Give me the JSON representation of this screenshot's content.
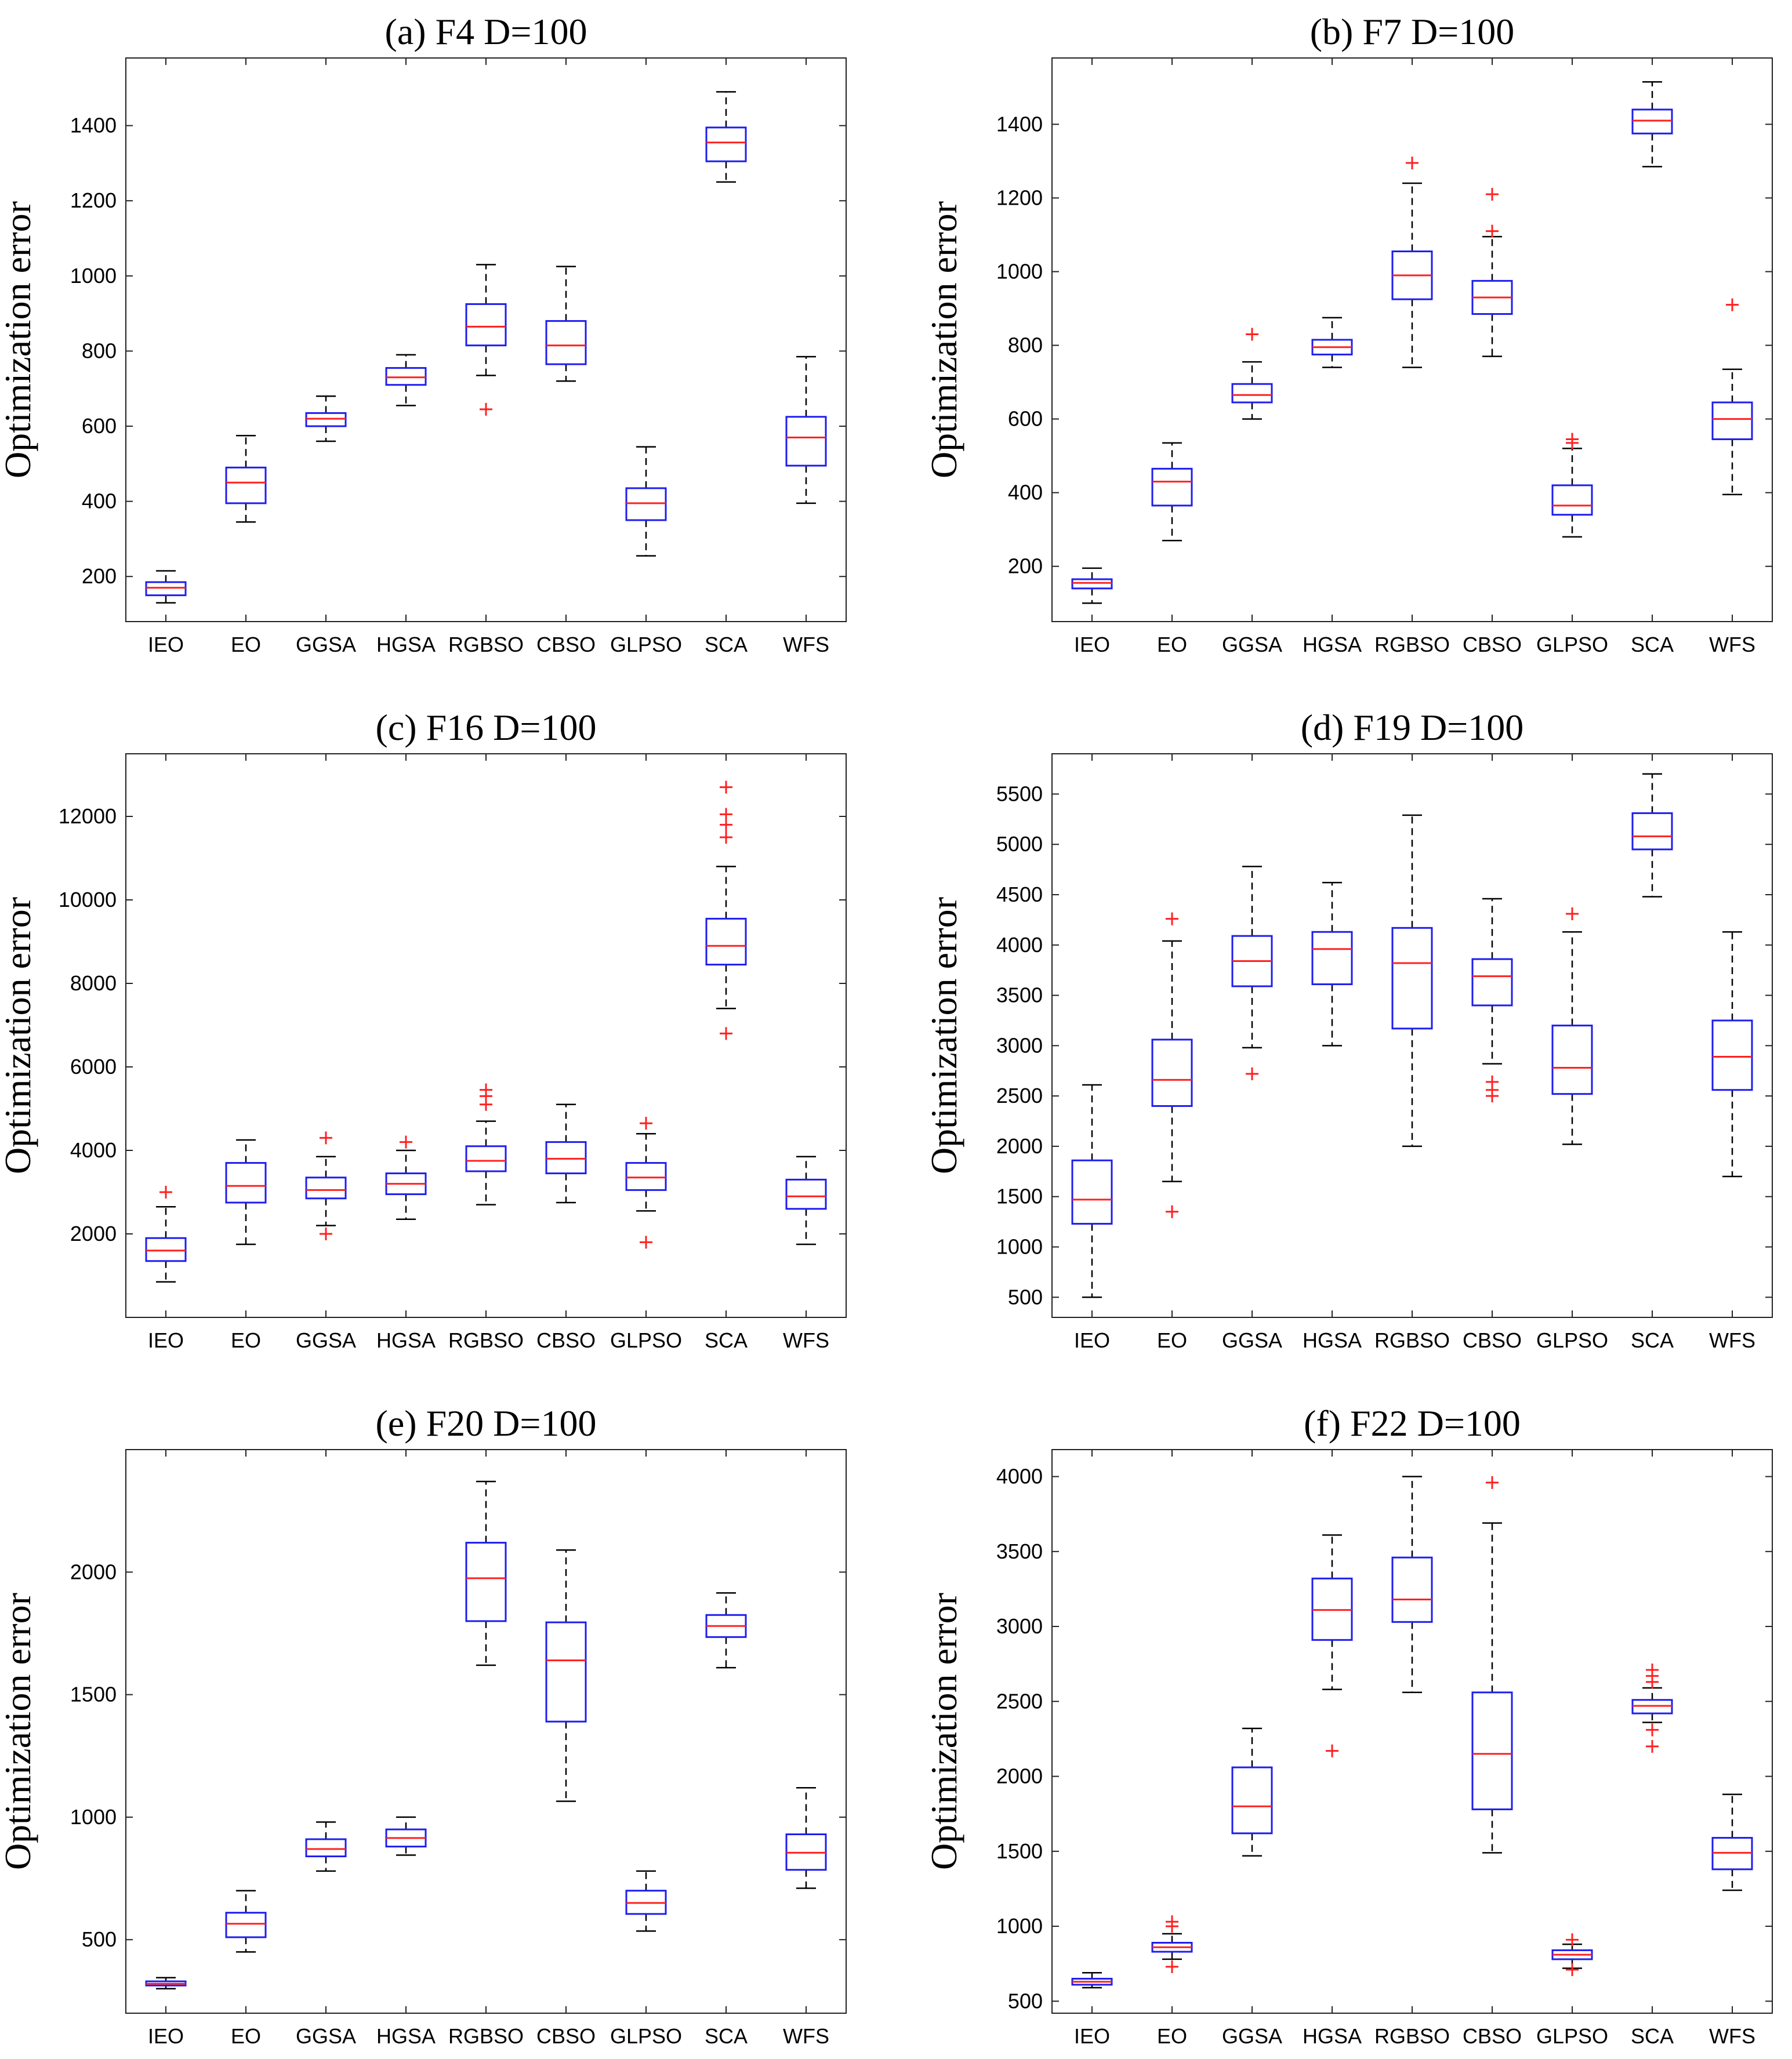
{
  "ylabel": "Optimization error",
  "categories": [
    "IEO",
    "EO",
    "GGSA",
    "HGSA",
    "RGBSO",
    "CBSO",
    "GLPSO",
    "SCA",
    "WFS"
  ],
  "colors": {
    "box": "#1d1df0",
    "median": "#ff2020",
    "whisker": "#000000",
    "outlier": "#ff2020"
  },
  "chart_data": [
    {
      "type": "boxplot",
      "title": "(a)  F4 D=100",
      "ylabel": "Optimization error",
      "ylim": [
        80,
        1580
      ],
      "yticks": [
        200,
        400,
        600,
        800,
        1000,
        1200,
        1400
      ],
      "boxes": [
        {
          "cat": "IEO",
          "lo": 130,
          "q1": 150,
          "med": 170,
          "q3": 185,
          "hi": 215,
          "out": []
        },
        {
          "cat": "EO",
          "lo": 345,
          "q1": 395,
          "med": 450,
          "q3": 490,
          "hi": 575,
          "out": []
        },
        {
          "cat": "GGSA",
          "lo": 560,
          "q1": 600,
          "med": 620,
          "q3": 635,
          "hi": 680,
          "out": []
        },
        {
          "cat": "HGSA",
          "lo": 655,
          "q1": 710,
          "med": 730,
          "q3": 755,
          "hi": 790,
          "out": []
        },
        {
          "cat": "RGBSO",
          "lo": 735,
          "q1": 815,
          "med": 865,
          "q3": 925,
          "hi": 1030,
          "out": [
            645
          ]
        },
        {
          "cat": "CBSO",
          "lo": 720,
          "q1": 765,
          "med": 815,
          "q3": 880,
          "hi": 1025,
          "out": []
        },
        {
          "cat": "GLPSO",
          "lo": 255,
          "q1": 350,
          "med": 395,
          "q3": 435,
          "hi": 545,
          "out": []
        },
        {
          "cat": "SCA",
          "lo": 1250,
          "q1": 1305,
          "med": 1355,
          "q3": 1395,
          "hi": 1490,
          "out": []
        },
        {
          "cat": "WFS",
          "lo": 395,
          "q1": 495,
          "med": 570,
          "q3": 625,
          "hi": 785,
          "out": []
        }
      ]
    },
    {
      "type": "boxplot",
      "title": "(b)  F7 D=100",
      "ylabel": "Optimization error",
      "ylim": [
        50,
        1580
      ],
      "yticks": [
        200,
        400,
        600,
        800,
        1000,
        1200,
        1400
      ],
      "boxes": [
        {
          "cat": "IEO",
          "lo": 100,
          "q1": 140,
          "med": 155,
          "q3": 165,
          "hi": 195,
          "out": []
        },
        {
          "cat": "EO",
          "lo": 270,
          "q1": 365,
          "med": 430,
          "q3": 465,
          "hi": 535,
          "out": []
        },
        {
          "cat": "GGSA",
          "lo": 600,
          "q1": 645,
          "med": 665,
          "q3": 695,
          "hi": 755,
          "out": [
            830
          ]
        },
        {
          "cat": "HGSA",
          "lo": 740,
          "q1": 775,
          "med": 795,
          "q3": 815,
          "hi": 875,
          "out": []
        },
        {
          "cat": "RGBSO",
          "lo": 740,
          "q1": 925,
          "med": 990,
          "q3": 1055,
          "hi": 1240,
          "out": [
            1295
          ]
        },
        {
          "cat": "CBSO",
          "lo": 770,
          "q1": 885,
          "med": 930,
          "q3": 975,
          "hi": 1095,
          "out": [
            1110,
            1210
          ]
        },
        {
          "cat": "GLPSO",
          "lo": 280,
          "q1": 340,
          "med": 365,
          "q3": 420,
          "hi": 520,
          "out": [
            535,
            545
          ]
        },
        {
          "cat": "SCA",
          "lo": 1285,
          "q1": 1375,
          "med": 1410,
          "q3": 1440,
          "hi": 1515,
          "out": []
        },
        {
          "cat": "WFS",
          "lo": 395,
          "q1": 545,
          "med": 600,
          "q3": 645,
          "hi": 735,
          "out": [
            910
          ]
        }
      ]
    },
    {
      "type": "boxplot",
      "title": "(c)  F16 D=100",
      "ylabel": "Optimization error",
      "ylim": [
        0,
        13500
      ],
      "yticks": [
        2000,
        4000,
        6000,
        8000,
        10000,
        12000
      ],
      "boxes": [
        {
          "cat": "IEO",
          "lo": 850,
          "q1": 1350,
          "med": 1600,
          "q3": 1900,
          "hi": 2650,
          "out": [
            3000
          ]
        },
        {
          "cat": "EO",
          "lo": 1750,
          "q1": 2750,
          "med": 3150,
          "q3": 3700,
          "hi": 4250,
          "out": []
        },
        {
          "cat": "GGSA",
          "lo": 2200,
          "q1": 2850,
          "med": 3050,
          "q3": 3350,
          "hi": 3850,
          "out": [
            2000,
            4300
          ]
        },
        {
          "cat": "HGSA",
          "lo": 2350,
          "q1": 2950,
          "med": 3200,
          "q3": 3450,
          "hi": 4000,
          "out": [
            4200
          ]
        },
        {
          "cat": "RGBSO",
          "lo": 2700,
          "q1": 3500,
          "med": 3750,
          "q3": 4100,
          "hi": 4700,
          "out": [
            5100,
            5300,
            5450
          ]
        },
        {
          "cat": "CBSO",
          "lo": 2750,
          "q1": 3450,
          "med": 3800,
          "q3": 4200,
          "hi": 5100,
          "out": []
        },
        {
          "cat": "GLPSO",
          "lo": 2550,
          "q1": 3050,
          "med": 3350,
          "q3": 3700,
          "hi": 4400,
          "out": [
            1800,
            4650
          ]
        },
        {
          "cat": "SCA",
          "lo": 7400,
          "q1": 8450,
          "med": 8900,
          "q3": 9550,
          "hi": 10800,
          "out": [
            6800,
            11500,
            11800,
            12050,
            12700
          ]
        },
        {
          "cat": "WFS",
          "lo": 1750,
          "q1": 2600,
          "med": 2900,
          "q3": 3300,
          "hi": 3850,
          "out": []
        }
      ]
    },
    {
      "type": "boxplot",
      "title": "(d)  F19 D=100",
      "ylabel": "Optimization error",
      "ylim": [
        300,
        5900
      ],
      "yticks": [
        500,
        1000,
        1500,
        2000,
        2500,
        3000,
        3500,
        4000,
        4500,
        5000,
        5500
      ],
      "boxes": [
        {
          "cat": "IEO",
          "lo": 500,
          "q1": 1230,
          "med": 1470,
          "q3": 1860,
          "hi": 2610,
          "out": []
        },
        {
          "cat": "EO",
          "lo": 1650,
          "q1": 2400,
          "med": 2660,
          "q3": 3060,
          "hi": 4040,
          "out": [
            1350,
            4260
          ]
        },
        {
          "cat": "GGSA",
          "lo": 2980,
          "q1": 3590,
          "med": 3840,
          "q3": 4090,
          "hi": 4780,
          "out": [
            2720
          ]
        },
        {
          "cat": "HGSA",
          "lo": 3000,
          "q1": 3610,
          "med": 3960,
          "q3": 4130,
          "hi": 4620,
          "out": []
        },
        {
          "cat": "RGBSO",
          "lo": 2000,
          "q1": 3170,
          "med": 3820,
          "q3": 4170,
          "hi": 5290,
          "out": []
        },
        {
          "cat": "CBSO",
          "lo": 2820,
          "q1": 3400,
          "med": 3690,
          "q3": 3860,
          "hi": 4460,
          "out": [
            2500,
            2560,
            2640
          ]
        },
        {
          "cat": "GLPSO",
          "lo": 2020,
          "q1": 2520,
          "med": 2780,
          "q3": 3200,
          "hi": 4130,
          "out": [
            4310
          ]
        },
        {
          "cat": "SCA",
          "lo": 4480,
          "q1": 4950,
          "med": 5080,
          "q3": 5310,
          "hi": 5700,
          "out": []
        },
        {
          "cat": "WFS",
          "lo": 1700,
          "q1": 2560,
          "med": 2890,
          "q3": 3250,
          "hi": 4130,
          "out": []
        }
      ]
    },
    {
      "type": "boxplot",
      "title": "(e)  F20 D=100",
      "ylabel": "Optimization error",
      "ylim": [
        200,
        2500
      ],
      "yticks": [
        500,
        1000,
        1500,
        2000
      ],
      "boxes": [
        {
          "cat": "IEO",
          "lo": 300,
          "q1": 313,
          "med": 320,
          "q3": 330,
          "hi": 345,
          "out": []
        },
        {
          "cat": "EO",
          "lo": 450,
          "q1": 510,
          "med": 565,
          "q3": 610,
          "hi": 700,
          "out": []
        },
        {
          "cat": "GGSA",
          "lo": 780,
          "q1": 840,
          "med": 870,
          "q3": 910,
          "hi": 980,
          "out": []
        },
        {
          "cat": "HGSA",
          "lo": 845,
          "q1": 880,
          "med": 915,
          "q3": 950,
          "hi": 1000,
          "out": []
        },
        {
          "cat": "RGBSO",
          "lo": 1620,
          "q1": 1800,
          "med": 1975,
          "q3": 2120,
          "hi": 2370,
          "out": []
        },
        {
          "cat": "CBSO",
          "lo": 1065,
          "q1": 1390,
          "med": 1640,
          "q3": 1795,
          "hi": 2090,
          "out": []
        },
        {
          "cat": "GLPSO",
          "lo": 535,
          "q1": 605,
          "med": 650,
          "q3": 700,
          "hi": 780,
          "out": []
        },
        {
          "cat": "SCA",
          "lo": 1610,
          "q1": 1735,
          "med": 1780,
          "q3": 1825,
          "hi": 1915,
          "out": []
        },
        {
          "cat": "WFS",
          "lo": 710,
          "q1": 785,
          "med": 855,
          "q3": 930,
          "hi": 1120,
          "out": []
        }
      ]
    },
    {
      "type": "boxplot",
      "title": "(f)  F22 D=100",
      "ylabel": "Optimization error",
      "ylim": [
        420,
        4180
      ],
      "yticks": [
        500,
        1000,
        1500,
        2000,
        2500,
        3000,
        3500,
        4000
      ],
      "boxes": [
        {
          "cat": "IEO",
          "lo": 590,
          "q1": 610,
          "med": 630,
          "q3": 650,
          "hi": 690,
          "out": []
        },
        {
          "cat": "EO",
          "lo": 780,
          "q1": 830,
          "med": 860,
          "q3": 890,
          "hi": 950,
          "out": [
            730,
            1000,
            1030
          ]
        },
        {
          "cat": "GGSA",
          "lo": 1470,
          "q1": 1620,
          "med": 1800,
          "q3": 2060,
          "hi": 2320,
          "out": []
        },
        {
          "cat": "HGSA",
          "lo": 2580,
          "q1": 2910,
          "med": 3110,
          "q3": 3320,
          "hi": 3610,
          "out": [
            2170
          ]
        },
        {
          "cat": "RGBSO",
          "lo": 2560,
          "q1": 3030,
          "med": 3180,
          "q3": 3460,
          "hi": 4000,
          "out": []
        },
        {
          "cat": "CBSO",
          "lo": 1490,
          "q1": 1780,
          "med": 2150,
          "q3": 2560,
          "hi": 3690,
          "out": [
            3960
          ]
        },
        {
          "cat": "GLPSO",
          "lo": 720,
          "q1": 780,
          "med": 810,
          "q3": 840,
          "hi": 880,
          "out": [
            710,
            910
          ]
        },
        {
          "cat": "SCA",
          "lo": 2360,
          "q1": 2420,
          "med": 2470,
          "q3": 2510,
          "hi": 2590,
          "out": [
            2200,
            2310,
            2630,
            2670,
            2710
          ]
        },
        {
          "cat": "WFS",
          "lo": 1240,
          "q1": 1380,
          "med": 1490,
          "q3": 1590,
          "hi": 1880,
          "out": []
        }
      ]
    }
  ]
}
